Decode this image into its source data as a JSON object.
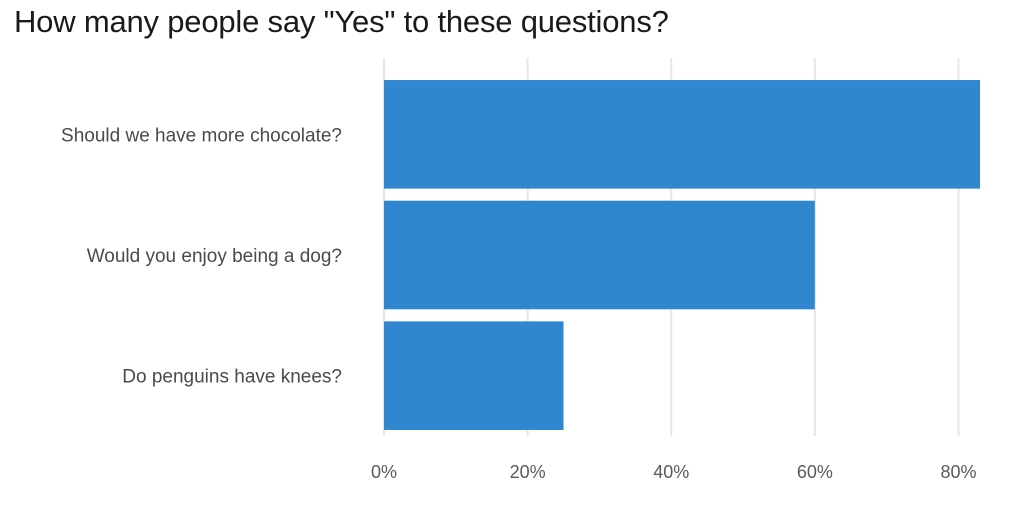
{
  "chart_data": {
    "type": "bar",
    "orientation": "horizontal",
    "title": "How many people say \"Yes\" to these questions?",
    "categories": [
      "Should we have more chocolate?",
      "Would you enjoy being a dog?",
      "Do penguins have knees?"
    ],
    "values": [
      83,
      60,
      25
    ],
    "xlim": [
      0,
      83
    ],
    "x_ticks": [
      0,
      20,
      40,
      60,
      80
    ],
    "x_tick_labels": [
      "0%",
      "20%",
      "40%",
      "60%",
      "80%"
    ],
    "grid": true,
    "legend": "none",
    "bar_color": "#3087d0"
  }
}
